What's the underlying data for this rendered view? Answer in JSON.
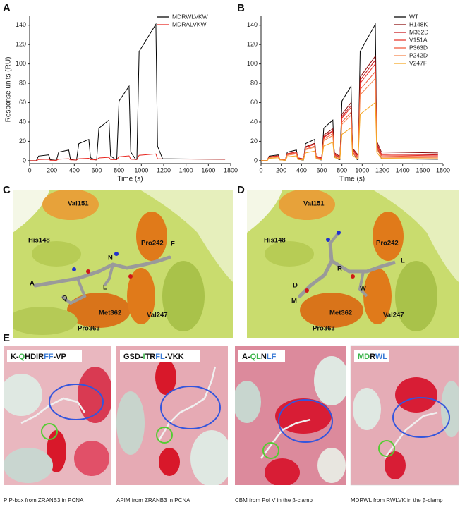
{
  "chart_data": [
    {
      "type": "line",
      "label": "A",
      "xlabel": "Time (s)",
      "ylabel": "Response units (RU)",
      "x": [
        0,
        60,
        80,
        170,
        185,
        230,
        240,
        260,
        350,
        365,
        410,
        420,
        440,
        530,
        545,
        590,
        600,
        620,
        710,
        725,
        770,
        780,
        800,
        890,
        905,
        950,
        960,
        980,
        1130,
        1145,
        1190,
        1750
      ],
      "xlim": [
        0,
        1800
      ],
      "xticks": [
        0,
        200,
        400,
        600,
        800,
        1000,
        1200,
        1400,
        1600,
        1800
      ],
      "ylim": [
        -3,
        150
      ],
      "yticks": [
        0,
        20,
        40,
        60,
        80,
        100,
        120,
        140
      ],
      "legend": "upper right",
      "series": [
        {
          "name": "MDRWLVKW",
          "color": "#000000",
          "values": [
            0,
            0,
            4.8,
            6,
            1,
            0.5,
            0.5,
            8.8,
            11,
            1.5,
            0.6,
            0.6,
            17.6,
            22,
            3,
            0.8,
            0.8,
            33.6,
            42,
            5,
            1,
            1,
            61.6,
            77,
            9,
            1.2,
            1.2,
            112.8,
            141,
            15,
            2,
            1.5
          ]
        },
        {
          "name": "MDRALVKW",
          "color": "#e8251f",
          "values": [
            0,
            0,
            1.2,
            1.5,
            0.5,
            0.4,
            0.4,
            1.6,
            2,
            0.8,
            0.7,
            0.7,
            2,
            2.5,
            1,
            0.9,
            0.9,
            2.8,
            3.5,
            1.2,
            1.1,
            1.1,
            4,
            5,
            1.5,
            1.4,
            1.4,
            5.6,
            7,
            2,
            1.8,
            1.5
          ]
        }
      ]
    },
    {
      "type": "line",
      "label": "B",
      "xlabel": "Time (s)",
      "x": [
        0,
        60,
        80,
        170,
        185,
        230,
        240,
        260,
        350,
        365,
        410,
        420,
        440,
        530,
        545,
        590,
        600,
        620,
        710,
        725,
        770,
        780,
        800,
        890,
        905,
        950,
        960,
        980,
        1130,
        1145,
        1190,
        1750
      ],
      "xlim": [
        0,
        1800
      ],
      "xticks": [
        0,
        200,
        400,
        600,
        800,
        1000,
        1200,
        1400,
        1600,
        1800
      ],
      "ylim": [
        -3,
        150
      ],
      "yticks": [
        0,
        20,
        40,
        60,
        80,
        100,
        120,
        140
      ],
      "legend": "upper right",
      "series": [
        {
          "name": "WT",
          "color": "#000000",
          "values": [
            0,
            0,
            4.8,
            6,
            1,
            0.5,
            0.5,
            8.8,
            11,
            1.5,
            0.6,
            0.6,
            17.6,
            22,
            3,
            0.8,
            0.8,
            33.6,
            42,
            5,
            1,
            1,
            61.6,
            77,
            9,
            1.2,
            1.2,
            112.8,
            141,
            15,
            2,
            1.5
          ]
        },
        {
          "name": "H148K",
          "color": "#8b0a0a",
          "values": [
            0,
            0,
            4,
            5,
            1.5,
            1,
            1,
            7.2,
            9,
            2.9,
            2,
            2,
            14.4,
            18,
            4.8,
            3,
            3,
            26.4,
            33,
            8.3,
            5,
            5,
            48,
            60,
            13,
            7,
            7,
            86.4,
            108,
            19.8,
            9,
            8
          ]
        },
        {
          "name": "M362D",
          "color": "#c8161a",
          "values": [
            0,
            0,
            4,
            5,
            1.5,
            1,
            1,
            7.2,
            9,
            2.9,
            2,
            2,
            13.6,
            17,
            4.7,
            3,
            3,
            24.8,
            31,
            7.1,
            4,
            4,
            45.6,
            57,
            11.7,
            6,
            6,
            83.2,
            104,
            17.4,
            7,
            6
          ]
        },
        {
          "name": "V151A",
          "color": "#e8342a",
          "values": [
            0,
            0,
            4,
            5,
            1.5,
            1,
            1,
            7.2,
            9,
            2.4,
            1.5,
            1.5,
            13.6,
            17,
            4.2,
            2.5,
            2.5,
            24,
            30,
            6.5,
            3.5,
            3.5,
            44,
            55,
            10.5,
            5,
            5,
            80,
            100,
            16,
            6,
            5
          ]
        },
        {
          "name": "P363D",
          "color": "#f0583a",
          "values": [
            0,
            0,
            3.2,
            4,
            1.2,
            0.8,
            0.8,
            6.4,
            8,
            2,
            1.2,
            1.2,
            12,
            15,
            3.5,
            2,
            2,
            22.4,
            28,
            5.8,
            3,
            3,
            40,
            50,
            9,
            4,
            4,
            73.6,
            92,
            14.2,
            5,
            4
          ]
        },
        {
          "name": "P242D",
          "color": "#f5834a",
          "values": [
            0,
            0,
            3.2,
            4,
            0.9,
            0.5,
            0.5,
            5.6,
            7,
            1.7,
            1,
            1,
            11.2,
            14,
            2.9,
            1.5,
            1.5,
            20.8,
            26,
            4.6,
            2,
            2,
            37.6,
            47,
            7.7,
            3,
            3,
            68,
            85,
            12,
            3.5,
            3
          ]
        },
        {
          "name": "V247F",
          "color": "#f5a623",
          "values": [
            0,
            0,
            2.4,
            3,
            0.8,
            0.5,
            0.5,
            4,
            5,
            1.3,
            0.8,
            0.8,
            8,
            10,
            2,
            1,
            1,
            15.2,
            19,
            3.4,
            1.5,
            1.5,
            27.2,
            34,
            5.4,
            2,
            2,
            48,
            60,
            8.5,
            2.5,
            2
          ]
        }
      ]
    }
  ],
  "panel_c": {
    "letter": "C",
    "labels": [
      "Val151",
      "His148",
      "Pro242",
      "F",
      "N",
      "A",
      "Q",
      "L",
      "Met362",
      "Val247",
      "Pro363"
    ]
  },
  "panel_d": {
    "letter": "D",
    "labels": [
      "Val151",
      "His148",
      "Pro242",
      "L",
      "R",
      "D",
      "W",
      "M",
      "Met362",
      "Val247",
      "Pro363"
    ]
  },
  "panel_e": {
    "letter": "E",
    "panels": [
      {
        "title_parts": [
          {
            "text": "K-",
            "color": "#111111"
          },
          {
            "text": "Q",
            "color": "#3cb44b"
          },
          {
            "text": "HDIR",
            "color": "#111111"
          },
          {
            "text": "FF",
            "color": "#3a7bd5"
          },
          {
            "text": "-VP",
            "color": "#111111"
          }
        ],
        "caption": "PIP-box from ZRANB3 in PCNA"
      },
      {
        "title_parts": [
          {
            "text": "GSD-",
            "color": "#111111"
          },
          {
            "text": "I",
            "color": "#3cb44b"
          },
          {
            "text": "TR",
            "color": "#111111"
          },
          {
            "text": "FL",
            "color": "#3a7bd5"
          },
          {
            "text": "-VKK",
            "color": "#111111"
          }
        ],
        "caption": "APIM from ZRANB3 in PCNA"
      },
      {
        "title_parts": [
          {
            "text": "A-",
            "color": "#111111"
          },
          {
            "text": "QL",
            "color": "#3cb44b"
          },
          {
            "text": "N",
            "color": "#111111"
          },
          {
            "text": "LF",
            "color": "#3a7bd5"
          }
        ],
        "caption": "CBM from Pol V in the β-clamp"
      },
      {
        "title_parts": [
          {
            "text": "MD",
            "color": "#3cb44b"
          },
          {
            "text": "R",
            "color": "#111111"
          },
          {
            "text": "WL",
            "color": "#3a7bd5"
          }
        ],
        "caption": "MDRWL from RWLVK in the β-clamp"
      }
    ]
  }
}
